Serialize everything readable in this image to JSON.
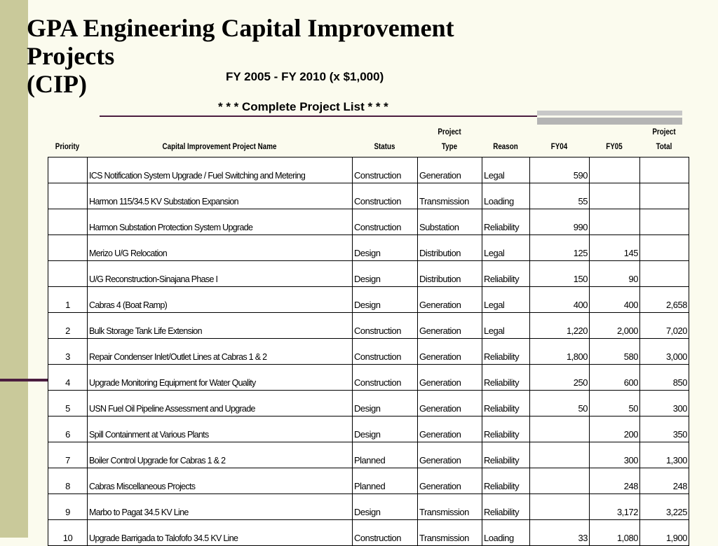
{
  "slide": {
    "title_lines": [
      "GPA Engineering Capital Improvement",
      "Projects",
      "(CIP)"
    ],
    "subtitle": "FY 2005 - FY 2010 (x $1,000)",
    "list_note": "* * * Complete Project List * * *"
  },
  "table": {
    "headers": {
      "priority": "Priority",
      "name": "Capital Improvement Project Name",
      "status": "Status",
      "type_top": "Project",
      "type_bottom": "Type",
      "reason": "Reason",
      "fy04": "FY04",
      "fy05": "FY05",
      "total_top": "Project",
      "total_bottom": "Total"
    },
    "rows": [
      {
        "priority": "",
        "name": "ICS Notification System Upgrade / Fuel Switching and Metering",
        "status": "Construction",
        "type": "Generation",
        "reason": "Legal",
        "fy04": "590",
        "fy05": "",
        "total": ""
      },
      {
        "priority": "",
        "name": "Harmon 115/34.5 KV Substation Expansion",
        "status": "Construction",
        "type": "Transmission",
        "reason": "Loading",
        "fy04": "55",
        "fy05": "",
        "total": ""
      },
      {
        "priority": "",
        "name": "Harmon Substation Protection System Upgrade",
        "status": "Construction",
        "type": "Substation",
        "reason": "Reliability",
        "fy04": "990",
        "fy05": "",
        "total": ""
      },
      {
        "priority": "",
        "name": "Merizo U/G Relocation",
        "status": "Design",
        "type": "Distribution",
        "reason": "Legal",
        "fy04": "125",
        "fy05": "145",
        "total": ""
      },
      {
        "priority": "",
        "name": "U/G Reconstruction-Sinajana Phase I",
        "status": "Design",
        "type": "Distribution",
        "reason": "Reliability",
        "fy04": "150",
        "fy05": "90",
        "total": ""
      },
      {
        "priority": "1",
        "name": "Cabras 4 (Boat Ramp)",
        "status": "Design",
        "type": "Generation",
        "reason": "Legal",
        "fy04": "400",
        "fy05": "400",
        "total": "2,658"
      },
      {
        "priority": "2",
        "name": "Bulk Storage Tank Life Extension",
        "status": "Construction",
        "type": "Generation",
        "reason": "Legal",
        "fy04": "1,220",
        "fy05": "2,000",
        "total": "7,020"
      },
      {
        "priority": "3",
        "name": "Repair Condenser Inlet/Outlet Lines at Cabras 1 & 2",
        "status": "Construction",
        "type": "Generation",
        "reason": "Reliability",
        "fy04": "1,800",
        "fy05": "580",
        "total": "3,000"
      },
      {
        "priority": "4",
        "name": "Upgrade Monitoring Equipment for Water Quality",
        "status": "Construction",
        "type": "Generation",
        "reason": "Reliability",
        "fy04": "250",
        "fy05": "600",
        "total": "850"
      },
      {
        "priority": "5",
        "name": "USN Fuel Oil Pipeline Assessment and Upgrade",
        "status": "Design",
        "type": "Generation",
        "reason": "Reliability",
        "fy04": "50",
        "fy05": "50",
        "total": "300"
      },
      {
        "priority": "6",
        "name": "Spill Containment at Various Plants",
        "status": "Design",
        "type": "Generation",
        "reason": "Reliability",
        "fy04": "",
        "fy05": "200",
        "total": "350"
      },
      {
        "priority": "7",
        "name": "Boiler Control Upgrade for Cabras 1 & 2",
        "status": "Planned",
        "type": "Generation",
        "reason": "Reliability",
        "fy04": "",
        "fy05": "300",
        "total": "1,300"
      },
      {
        "priority": "8",
        "name": "Cabras Miscellaneous Projects",
        "status": "Planned",
        "type": "Generation",
        "reason": "Reliability",
        "fy04": "",
        "fy05": "248",
        "total": "248"
      },
      {
        "priority": "9",
        "name": "Marbo to Pagat 34.5 KV Line",
        "status": "Design",
        "type": "Transmission",
        "reason": "Reliability",
        "fy04": "",
        "fy05": "3,172",
        "total": "3,225"
      },
      {
        "priority": "10",
        "name": "Upgrade Barrigada to Talofofo 34.5 KV Line",
        "status": "Construction",
        "type": "Transmission",
        "reason": "Loading",
        "fy04": "33",
        "fy05": "1,080",
        "total": "1,900"
      }
    ]
  }
}
